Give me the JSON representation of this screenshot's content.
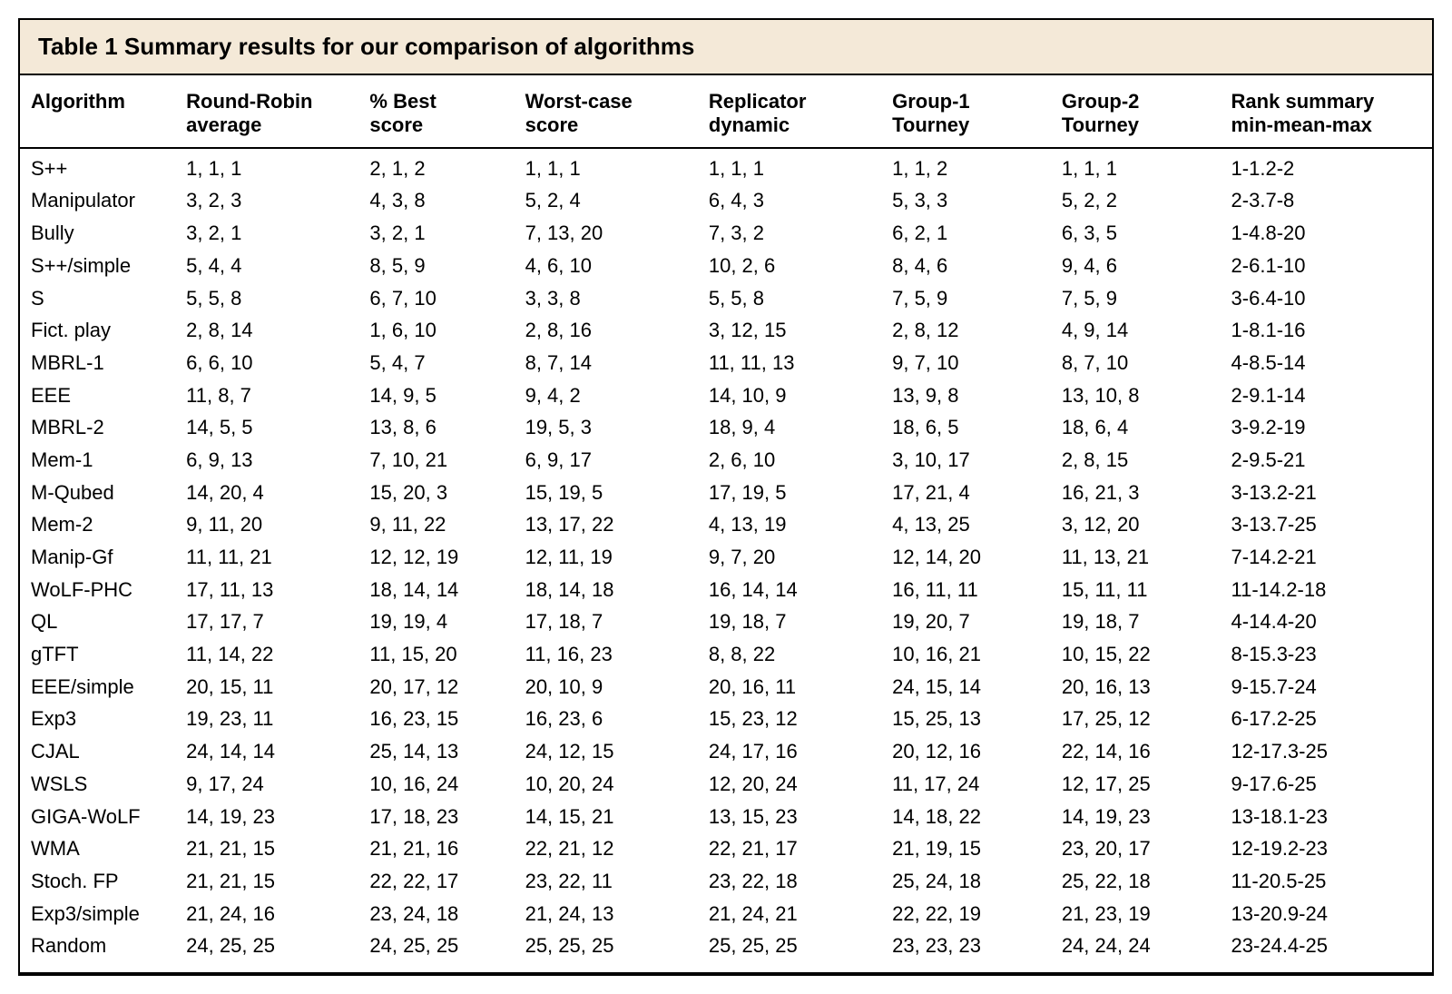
{
  "title": "Table 1 Summary results for our comparison of algorithms",
  "background_title": "#f4e9d8",
  "border_color": "#000000",
  "page_bg": "#ffffff",
  "font_family": "Arial, Helvetica, sans-serif",
  "title_fontsize_pt": 20,
  "header_fontsize_pt": 17,
  "cell_fontsize_pt": 17,
  "column_widths_pct": [
    11,
    13,
    11,
    13,
    13,
    12,
    12,
    15
  ],
  "columns": [
    "Algorithm",
    "Round-Robin average",
    "% Best score",
    "Worst-case score",
    "Replicator dynamic",
    "Group-1 Tourney",
    "Group-2 Tourney",
    "Rank summary min-mean-max"
  ],
  "rows": [
    [
      "S++",
      "1, 1, 1",
      "2, 1, 2",
      "1, 1, 1",
      "1, 1, 1",
      "1, 1, 2",
      "1, 1, 1",
      "1-1.2-2"
    ],
    [
      "Manipulator",
      "3, 2, 3",
      "4, 3, 8",
      "5, 2, 4",
      "6, 4, 3",
      "5, 3, 3",
      "5, 2, 2",
      "2-3.7-8"
    ],
    [
      "Bully",
      "3, 2, 1",
      "3, 2, 1",
      "7, 13, 20",
      "7, 3, 2",
      "6, 2, 1",
      "6, 3, 5",
      "1-4.8-20"
    ],
    [
      "S++/simple",
      "5, 4, 4",
      "8, 5, 9",
      "4, 6, 10",
      "10, 2, 6",
      "8, 4, 6",
      "9, 4, 6",
      "2-6.1-10"
    ],
    [
      "S",
      "5, 5, 8",
      "6, 7, 10",
      "3, 3, 8",
      "5, 5, 8",
      "7, 5, 9",
      "7, 5, 9",
      "3-6.4-10"
    ],
    [
      "Fict. play",
      "2, 8, 14",
      "1, 6, 10",
      "2, 8, 16",
      "3, 12, 15",
      "2, 8, 12",
      "4, 9, 14",
      "1-8.1-16"
    ],
    [
      "MBRL-1",
      "6, 6, 10",
      "5, 4, 7",
      "8, 7, 14",
      "11, 11, 13",
      "9, 7, 10",
      "8, 7, 10",
      "4-8.5-14"
    ],
    [
      "EEE",
      "11, 8, 7",
      "14, 9, 5",
      "9, 4, 2",
      "14, 10, 9",
      "13, 9, 8",
      "13, 10, 8",
      "2-9.1-14"
    ],
    [
      "MBRL-2",
      "14, 5, 5",
      "13, 8, 6",
      "19, 5, 3",
      "18, 9, 4",
      "18, 6, 5",
      "18, 6, 4",
      "3-9.2-19"
    ],
    [
      "Mem-1",
      "6, 9, 13",
      "7, 10, 21",
      "6, 9, 17",
      "2, 6, 10",
      "3, 10, 17",
      "2, 8, 15",
      "2-9.5-21"
    ],
    [
      "M-Qubed",
      "14, 20, 4",
      "15, 20, 3",
      "15, 19, 5",
      "17, 19, 5",
      "17, 21, 4",
      "16, 21, 3",
      "3-13.2-21"
    ],
    [
      "Mem-2",
      "9, 11, 20",
      "9, 11, 22",
      "13, 17, 22",
      "4, 13, 19",
      "4, 13, 25",
      "3, 12, 20",
      "3-13.7-25"
    ],
    [
      "Manip-Gf",
      "11, 11, 21",
      "12, 12, 19",
      "12, 11, 19",
      "9, 7, 20",
      "12, 14, 20",
      "11, 13, 21",
      "7-14.2-21"
    ],
    [
      "WoLF-PHC",
      "17, 11, 13",
      "18, 14, 14",
      "18, 14, 18",
      "16, 14, 14",
      "16, 11, 11",
      "15, 11, 11",
      "11-14.2-18"
    ],
    [
      "QL",
      "17, 17, 7",
      "19, 19, 4",
      "17, 18, 7",
      "19, 18, 7",
      "19, 20, 7",
      "19, 18, 7",
      "4-14.4-20"
    ],
    [
      "gTFT",
      "11, 14, 22",
      "11, 15, 20",
      "11, 16, 23",
      "8, 8, 22",
      "10, 16, 21",
      "10, 15, 22",
      "8-15.3-23"
    ],
    [
      "EEE/simple",
      "20, 15, 11",
      "20, 17, 12",
      "20, 10, 9",
      "20, 16, 11",
      "24, 15, 14",
      "20, 16, 13",
      "9-15.7-24"
    ],
    [
      "Exp3",
      "19, 23, 11",
      "16, 23, 15",
      "16, 23, 6",
      "15, 23, 12",
      "15, 25, 13",
      "17, 25, 12",
      "6-17.2-25"
    ],
    [
      "CJAL",
      "24, 14, 14",
      "25, 14, 13",
      "24, 12, 15",
      "24, 17, 16",
      "20, 12, 16",
      "22, 14, 16",
      "12-17.3-25"
    ],
    [
      "WSLS",
      "9, 17, 24",
      "10, 16, 24",
      "10, 20, 24",
      "12, 20, 24",
      "11, 17, 24",
      "12, 17, 25",
      "9-17.6-25"
    ],
    [
      "GIGA-WoLF",
      "14, 19, 23",
      "17, 18, 23",
      "14, 15, 21",
      "13, 15, 23",
      "14, 18, 22",
      "14, 19, 23",
      "13-18.1-23"
    ],
    [
      "WMA",
      "21, 21, 15",
      "21, 21, 16",
      "22, 21, 12",
      "22, 21, 17",
      "21, 19, 15",
      "23, 20, 17",
      "12-19.2-23"
    ],
    [
      "Stoch. FP",
      "21, 21, 15",
      "22, 22, 17",
      "23, 22, 11",
      "23, 22, 18",
      "25, 24, 18",
      "25, 22, 18",
      "11-20.5-25"
    ],
    [
      "Exp3/simple",
      "21, 24, 16",
      "23, 24, 18",
      "21, 24, 13",
      "21, 24, 21",
      "22, 22, 19",
      "21, 23, 19",
      "13-20.9-24"
    ],
    [
      "Random",
      "24, 25, 25",
      "24, 25, 25",
      "25, 25, 25",
      "25, 25, 25",
      "23, 23, 23",
      "24, 24, 24",
      "23-24.4-25"
    ]
  ]
}
